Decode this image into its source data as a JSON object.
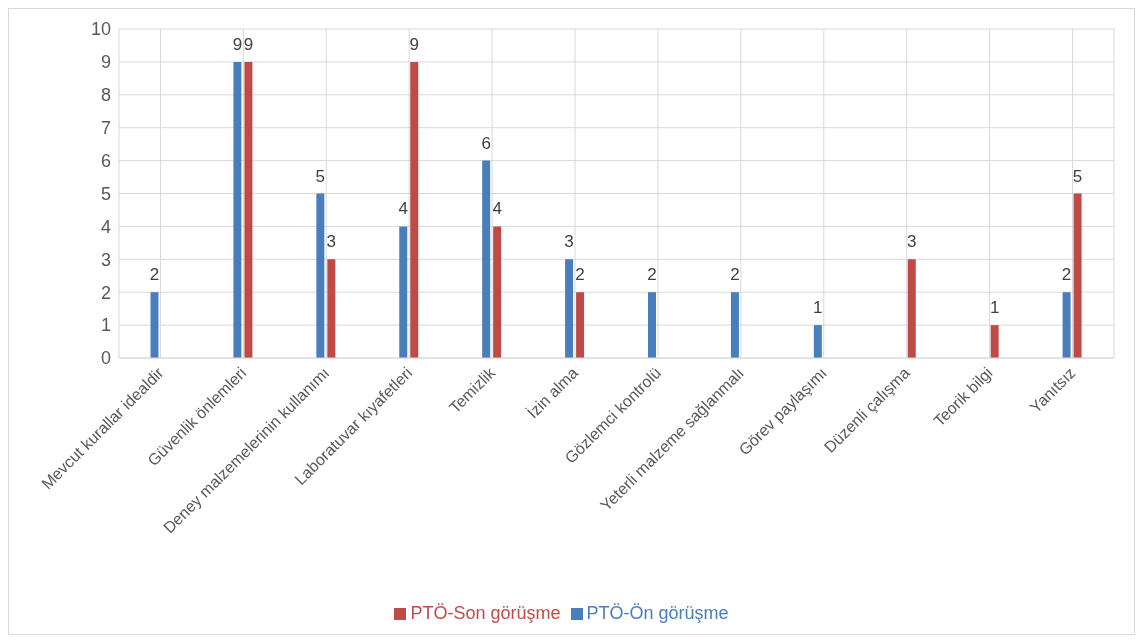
{
  "chart_data": {
    "type": "bar",
    "categories": [
      "Mevcut kurallar idealdir",
      "Güvenlik önlemleri",
      "Deney malzemelerinin kullanımı",
      "Laboratuvar kıyafetleri",
      "Temizlik",
      "İzin alma",
      "Gözlemci kontrolü",
      "Yeterli malzeme sağlanmalı",
      "Görev paylaşımı",
      "Düzenli çalışma",
      "Teorik bilgi",
      "Yanıtsız"
    ],
    "series": [
      {
        "name": "PTÖ-Ön görüşme",
        "color": "#4a7ebb",
        "values": [
          2,
          9,
          5,
          4,
          6,
          3,
          2,
          2,
          1,
          null,
          null,
          2
        ]
      },
      {
        "name": "PTÖ-Son görüşme",
        "color": "#be4b48",
        "values": [
          null,
          9,
          3,
          9,
          4,
          2,
          null,
          null,
          null,
          3,
          1,
          5
        ]
      }
    ],
    "ylim": [
      0,
      10
    ],
    "yticks": [
      0,
      1,
      2,
      3,
      4,
      5,
      6,
      7,
      8,
      9,
      10
    ],
    "grid": true,
    "legend": "bottom",
    "data_labels": true
  }
}
